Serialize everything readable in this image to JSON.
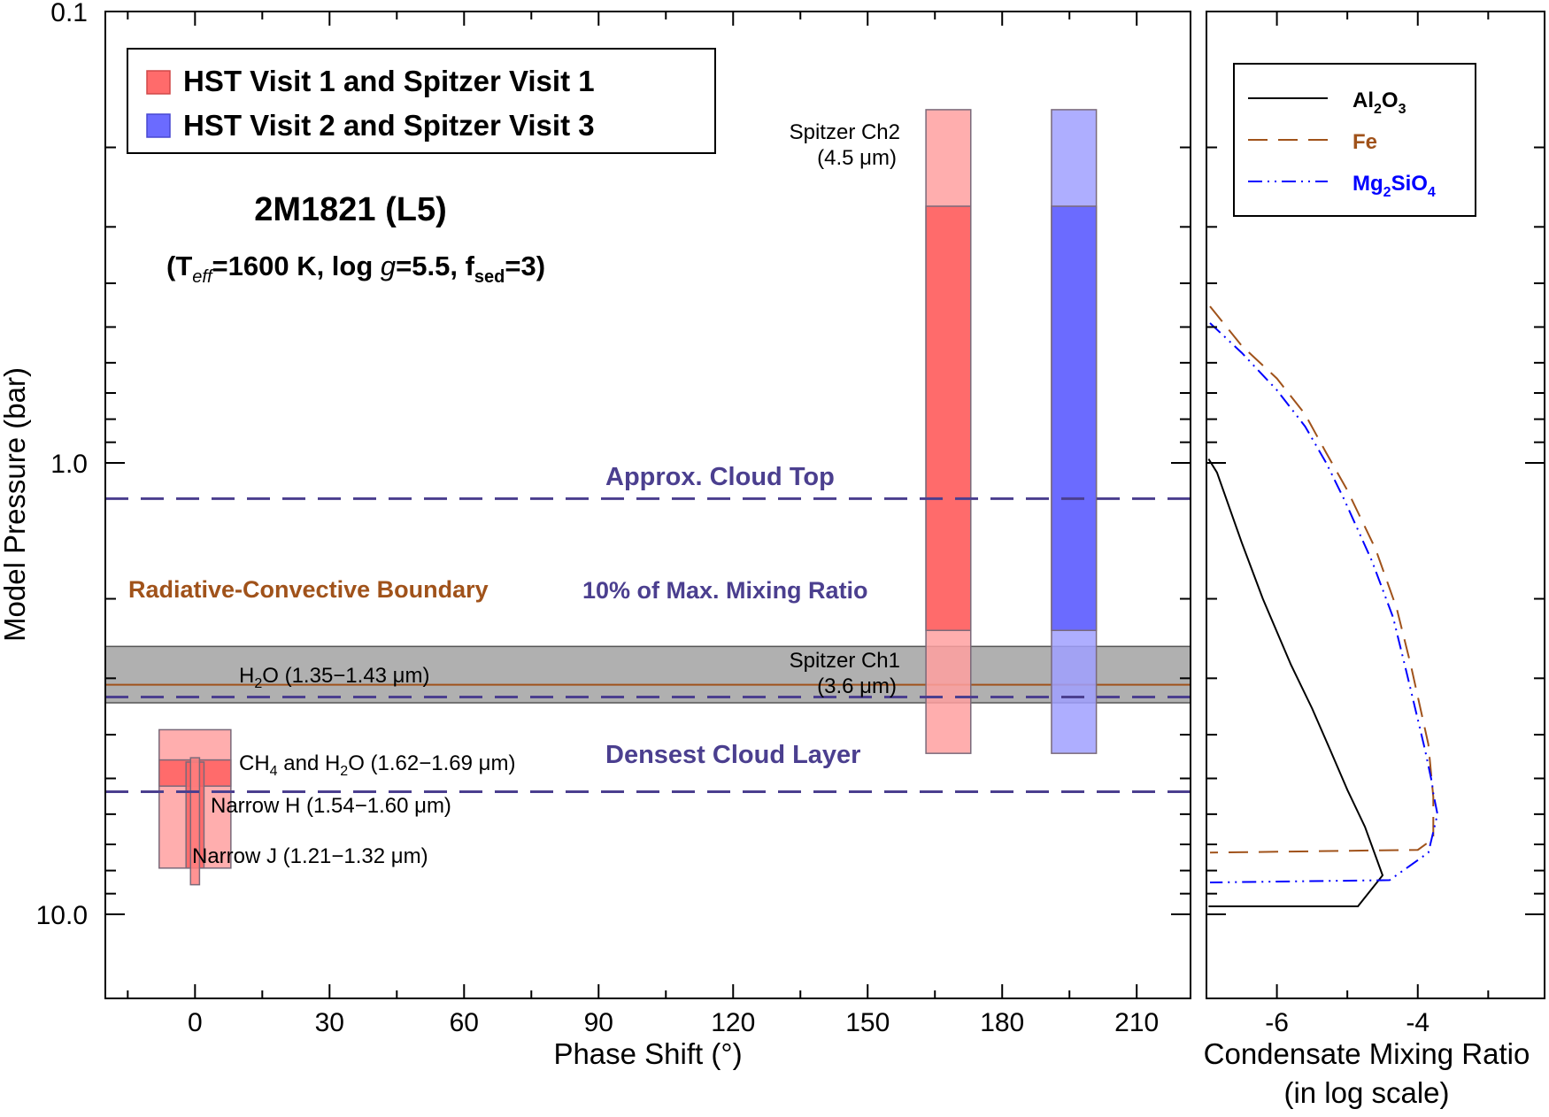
{
  "chart_data": [
    {
      "type": "range-bars",
      "title": "2M1821 (L5)",
      "subtitle": {
        "teff_label": "T",
        "teff_sub": "eff",
        "teff_val": "=1600 K, log ",
        "g": "g",
        "g_val": "=5.5, f",
        "fsed_sub": "sed",
        "fsed_val": "=3)",
        "open": "("
      },
      "xlabel": "Phase Shift (°)",
      "ylabel": "Model Pressure (bar)",
      "x_range": [
        -20,
        222
      ],
      "x_ticks": [
        0,
        30,
        60,
        90,
        120,
        150,
        180,
        210
      ],
      "x_tick_labels": [
        "0",
        "30",
        "60",
        "90",
        "120",
        "150",
        "180",
        "210"
      ],
      "y_scale": "log",
      "y_range": [
        0.1,
        17.5
      ],
      "y_ticks": [
        0.1,
        1.0,
        10.0
      ],
      "y_tick_labels": [
        "0.1",
        "1.0",
        "10.0"
      ],
      "legend": {
        "position": "top-left",
        "items": [
          {
            "label": "HST Visit 1 and Spitzer Visit 1",
            "color": "#ff6b6b"
          },
          {
            "label": "HST Visit 2 and Spitzer Visit 3",
            "color": "#6b6bff"
          }
        ]
      },
      "rc_band": {
        "p_min": 2.55,
        "p_max": 3.4,
        "color": "#b0b0b0"
      },
      "rc_line": {
        "p": 3.1,
        "label": "Radiative-Convective Boundary",
        "color": "#a0521a"
      },
      "horizontal_lines": [
        {
          "name": "approx-cloud-top",
          "p": 1.2,
          "label": "Approx. Cloud Top",
          "color": "#4b3f8f"
        },
        {
          "name": "mixing-ratio-10",
          "p": 3.3,
          "label": "10% of Max. Mixing Ratio",
          "color": "#4b3f8f"
        },
        {
          "name": "densest-cloud-layer",
          "p": 5.35,
          "label": "Densest Cloud Layer",
          "color": "#4b3f8f"
        }
      ],
      "bars": [
        {
          "name": "spitzer-v1-outer",
          "series": "Visit 1",
          "x_min": 163,
          "x_max": 173,
          "p_min": 0.165,
          "p_max": 4.4,
          "color": "#ffa0a0"
        },
        {
          "name": "spitzer-v1-inner",
          "series": "Visit 1",
          "x_min": 163,
          "x_max": 173,
          "p_min": 0.27,
          "p_max": 2.35,
          "color": "#ff5f5f"
        },
        {
          "name": "spitzer-v3-outer",
          "series": "Visit 3",
          "x_min": 191,
          "x_max": 201,
          "p_min": 0.165,
          "p_max": 4.4,
          "color": "#a0a0ff"
        },
        {
          "name": "spitzer-v3-inner",
          "series": "Visit 3",
          "x_min": 191,
          "x_max": 201,
          "p_min": 0.27,
          "p_max": 2.35,
          "color": "#5f5fff"
        },
        {
          "name": "h2o-band",
          "series": "Visit 1",
          "x_min": -8,
          "x_max": 8,
          "p_min": 3.9,
          "p_max": 7.9,
          "color": "#ffa0a0"
        },
        {
          "name": "ch4-h2o-band",
          "series": "Visit 1",
          "x_min": -8,
          "x_max": 8,
          "p_min": 4.55,
          "p_max": 5.2,
          "color": "#ff5f5f"
        },
        {
          "name": "narrow-h-band",
          "series": "Visit 1",
          "x_min": -2,
          "x_max": 2,
          "p_min": 4.6,
          "p_max": 7.9,
          "color": "#ff5f5f"
        },
        {
          "name": "narrow-j-band",
          "series": "Visit 1",
          "x_min": -1,
          "x_max": 1,
          "p_min": 4.5,
          "p_max": 8.6,
          "color": "#ff8080"
        }
      ],
      "annotations": {
        "spitzer_ch2": {
          "line1": "Spitzer Ch2",
          "line2": "(4.5 μm)"
        },
        "spitzer_ch1": {
          "line1": "Spitzer Ch1",
          "line2": "(3.6 μm)"
        },
        "h2o": {
          "pre": "H",
          "sub": "2",
          "post": "O (1.35−1.43 μm)"
        },
        "ch4": {
          "pre": "CH",
          "sub": "4",
          "mid": " and H",
          "sub2": "2",
          "post": "O (1.62−1.69 μm)"
        },
        "narrow_h": "Narrow H (1.54−1.60 μm)",
        "narrow_j": "Narrow J (1.21−1.32 μm)"
      }
    },
    {
      "type": "line",
      "xlabel_line1": "Condensate Mixing Ratio",
      "xlabel_line2": "(in log scale)",
      "x_range": [
        -7.0,
        -2.2
      ],
      "x_ticks": [
        -6,
        -4
      ],
      "x_tick_labels": [
        "-6",
        "-4"
      ],
      "y_scale": "log",
      "y_range": [
        0.1,
        17.5
      ],
      "legend": {
        "position": "top-right",
        "items": [
          {
            "name": "al2o3",
            "pre": "Al",
            "sub1": "2",
            "mid": "O",
            "sub2": "3",
            "color": "#000000",
            "dash": "solid"
          },
          {
            "name": "fe",
            "pre": "Fe",
            "color": "#a0521a",
            "dash": "dashed"
          },
          {
            "name": "mg2sio4",
            "pre": "Mg",
            "sub1": "2",
            "mid": "SiO",
            "sub2": "4",
            "color": "#0000ff",
            "dash": "dash-dot-dot"
          }
        ]
      },
      "series": [
        {
          "name": "Al2O3",
          "color": "#000000",
          "dash": "solid",
          "x": [
            -6.97,
            -6.85,
            -6.5,
            -6.2,
            -5.8,
            -5.5,
            -5.25,
            -5.0,
            -4.75,
            -4.5,
            -4.85,
            -6.97
          ],
          "y": [
            0.98,
            1.05,
            1.5,
            2.0,
            2.8,
            3.5,
            4.3,
            5.3,
            6.4,
            8.2,
            9.6,
            9.6
          ]
        },
        {
          "name": "Fe",
          "color": "#a0521a",
          "dash": "dashed",
          "x": [
            -6.95,
            -6.5,
            -6.0,
            -5.6,
            -5.3,
            -5.0,
            -4.6,
            -4.3,
            -4.1,
            -3.85,
            -3.78,
            -3.78,
            -4.0,
            -6.95
          ],
          "y": [
            0.45,
            0.55,
            0.65,
            0.78,
            0.95,
            1.15,
            1.55,
            2.1,
            2.8,
            4.2,
            5.5,
            6.8,
            7.2,
            7.3
          ]
        },
        {
          "name": "Mg2SiO4",
          "color": "#0000ff",
          "dash": "dash-dot-dot",
          "x": [
            -6.95,
            -6.5,
            -6.0,
            -5.6,
            -5.3,
            -5.05,
            -4.65,
            -4.35,
            -4.15,
            -3.9,
            -3.8,
            -3.78,
            -3.72,
            -3.85,
            -4.4,
            -6.95
          ],
          "y": [
            0.49,
            0.57,
            0.69,
            0.83,
            1.0,
            1.2,
            1.65,
            2.2,
            2.95,
            4.3,
            5.1,
            5.4,
            6.0,
            7.3,
            8.4,
            8.5
          ]
        }
      ]
    }
  ]
}
